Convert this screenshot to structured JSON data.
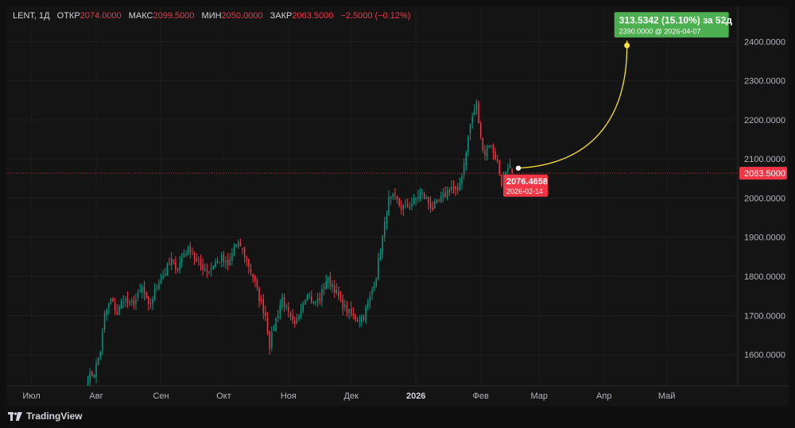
{
  "legend": {
    "symbol": "LENT, 1Д",
    "open_label": "ОТКР",
    "open": "2074.0000",
    "high_label": "МАКС",
    "high": "2099.5000",
    "low_label": "МИН",
    "low": "2050.0000",
    "close_label": "ЗАКР",
    "close": "2063.5000",
    "change": "−2.5000 (−0.12%)"
  },
  "last_price_label": "2063.5000",
  "forecast": {
    "target_label": "313.5342 (15.10%) за 52д",
    "target_sub": "2390.0000 @ 2026-04-07",
    "start_label": "2076.4658",
    "start_sub": "2026-02-14",
    "start_price": 2076.4658,
    "target_price": 2390.0
  },
  "brand": "TradingView",
  "colors": {
    "up": "#089981",
    "down": "#f23645",
    "target": "#4caf50",
    "arc": "#f7e33a"
  },
  "chart_data": {
    "type": "candlestick",
    "y_ticks": [
      "2400.0000",
      "2300.0000",
      "2200.0000",
      "2100.0000",
      "2000.0000",
      "1900.0000",
      "1800.0000",
      "1700.0000",
      "1600.0000"
    ],
    "y_tick_values": [
      2400,
      2300,
      2200,
      2100,
      2000,
      1900,
      1800,
      1700,
      1600
    ],
    "x_ticks": [
      {
        "label": "Июл",
        "bold": false,
        "day": -38
      },
      {
        "label": "Авг",
        "bold": false,
        "day": -7
      },
      {
        "label": "Сен",
        "bold": false,
        "day": 24
      },
      {
        "label": "Окт",
        "bold": false,
        "day": 54
      },
      {
        "label": "Ноя",
        "bold": false,
        "day": 85
      },
      {
        "label": "Дек",
        "bold": false,
        "day": 115
      },
      {
        "label": "2026",
        "bold": true,
        "day": 146
      },
      {
        "label": "Фев",
        "bold": false,
        "day": 177
      },
      {
        "label": "Мар",
        "bold": false,
        "day": 205
      },
      {
        "label": "Апр",
        "bold": false,
        "day": 236
      },
      {
        "label": "Май",
        "bold": false,
        "day": 266
      }
    ],
    "ylim": [
      1520,
      2490
    ],
    "xlim_days": [
      -50,
      300
    ],
    "ohlc_path": [
      [
        -11,
        1540
      ],
      [
        -8,
        1555
      ],
      [
        -5,
        1610
      ],
      [
        -3,
        1700
      ],
      [
        0,
        1740
      ],
      [
        3,
        1705
      ],
      [
        6,
        1745
      ],
      [
        9,
        1725
      ],
      [
        12,
        1740
      ],
      [
        15,
        1770
      ],
      [
        18,
        1720
      ],
      [
        20,
        1745
      ],
      [
        23,
        1790
      ],
      [
        26,
        1810
      ],
      [
        29,
        1840
      ],
      [
        32,
        1820
      ],
      [
        35,
        1860
      ],
      [
        38,
        1870
      ],
      [
        41,
        1835
      ],
      [
        44,
        1825
      ],
      [
        47,
        1815
      ],
      [
        50,
        1835
      ],
      [
        53,
        1845
      ],
      [
        56,
        1825
      ],
      [
        59,
        1875
      ],
      [
        62,
        1880
      ],
      [
        65,
        1840
      ],
      [
        68,
        1800
      ],
      [
        71,
        1745
      ],
      [
        74,
        1700
      ],
      [
        76,
        1625
      ],
      [
        79,
        1690
      ],
      [
        82,
        1745
      ],
      [
        85,
        1700
      ],
      [
        88,
        1670
      ],
      [
        91,
        1725
      ],
      [
        94,
        1760
      ],
      [
        97,
        1730
      ],
      [
        100,
        1745
      ],
      [
        103,
        1790
      ],
      [
        106,
        1780
      ],
      [
        109,
        1745
      ],
      [
        112,
        1720
      ],
      [
        115,
        1700
      ],
      [
        118,
        1690
      ],
      [
        121,
        1700
      ],
      [
        124,
        1745
      ],
      [
        127,
        1805
      ],
      [
        130,
        1900
      ],
      [
        133,
        1995
      ],
      [
        136,
        2000
      ],
      [
        139,
        1975
      ],
      [
        142,
        1980
      ],
      [
        145,
        1990
      ],
      [
        148,
        2015
      ],
      [
        151,
        1995
      ],
      [
        154,
        1975
      ],
      [
        157,
        1990
      ],
      [
        160,
        2010
      ],
      [
        163,
        2030
      ],
      [
        166,
        2010
      ],
      [
        169,
        2090
      ],
      [
        172,
        2190
      ],
      [
        175,
        2240
      ],
      [
        177,
        2150
      ],
      [
        179,
        2115
      ],
      [
        181,
        2140
      ],
      [
        183,
        2120
      ],
      [
        185,
        2090
      ],
      [
        187,
        2040
      ],
      [
        189,
        2060
      ],
      [
        191,
        2074
      ],
      [
        192,
        2063.5
      ]
    ]
  }
}
